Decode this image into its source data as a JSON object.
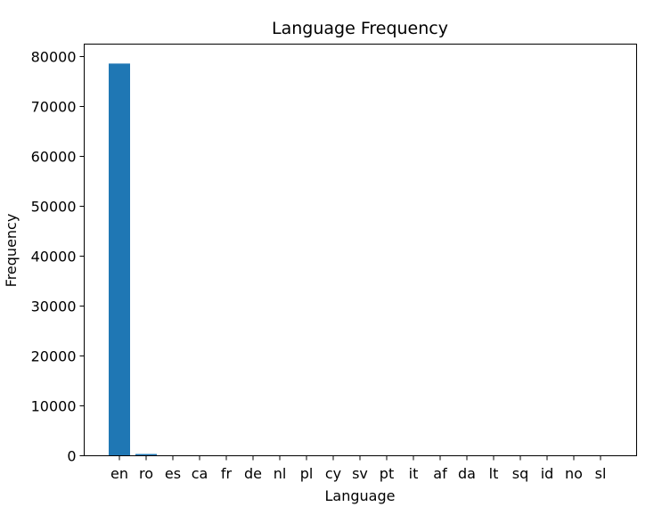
{
  "chart_data": {
    "type": "bar",
    "title": "Language Frequency",
    "xlabel": "Language",
    "ylabel": "Frequency",
    "categories": [
      "en",
      "ro",
      "es",
      "ca",
      "fr",
      "de",
      "nl",
      "pl",
      "cy",
      "sv",
      "pt",
      "it",
      "af",
      "da",
      "lt",
      "sq",
      "id",
      "no",
      "sl"
    ],
    "values": [
      78600,
      350,
      20,
      15,
      12,
      10,
      8,
      7,
      6,
      5,
      5,
      4,
      3,
      3,
      2,
      2,
      2,
      1,
      1
    ],
    "ylim": [
      0,
      82500
    ],
    "yticks": [
      0,
      10000,
      20000,
      30000,
      40000,
      50000,
      60000,
      70000,
      80000
    ],
    "bar_color": "#1f77b4",
    "grid": false,
    "legend": "none"
  }
}
